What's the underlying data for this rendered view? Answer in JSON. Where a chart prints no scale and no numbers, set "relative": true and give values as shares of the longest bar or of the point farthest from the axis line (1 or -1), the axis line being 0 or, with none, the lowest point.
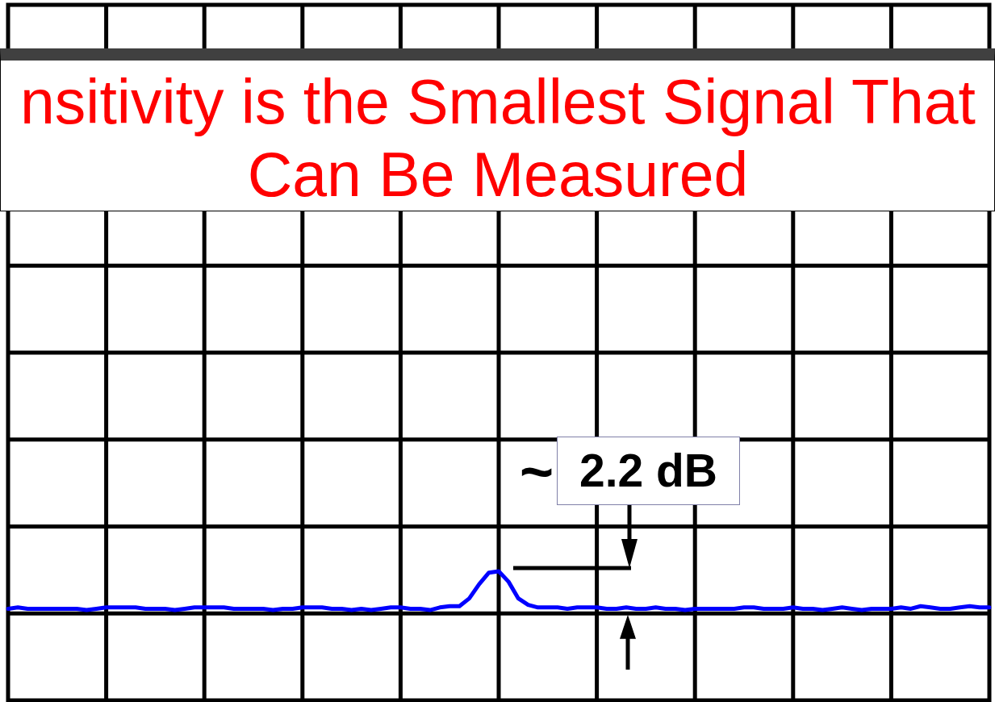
{
  "chart_data": {
    "type": "line",
    "title": "nsitivity is the Smallest Signal That Can Be Measured",
    "categories": [
      null,
      null,
      null,
      null,
      null,
      null,
      null,
      null,
      null,
      null,
      null,
      null,
      null,
      null,
      null,
      null,
      null,
      null,
      null,
      null,
      null,
      null,
      null,
      null,
      null,
      null,
      null,
      null,
      null,
      null,
      null,
      null,
      null,
      null,
      null,
      null,
      null,
      null,
      null,
      null,
      null,
      null,
      null,
      null,
      null,
      null,
      null,
      null,
      null,
      null,
      null,
      null,
      null,
      null,
      null,
      null,
      null,
      null,
      null,
      null,
      null,
      null,
      null,
      null,
      null,
      null,
      null,
      null,
      null,
      null,
      null,
      null,
      null,
      null,
      null,
      null,
      null,
      null,
      null,
      null,
      null,
      null,
      null,
      null,
      null,
      null,
      null,
      null,
      null,
      null,
      null,
      null,
      null,
      null,
      null,
      null,
      null,
      null,
      null,
      null,
      null
    ],
    "values": [
      0.71,
      0.72,
      0.71,
      0.71,
      0.71,
      0.71,
      0.71,
      0.71,
      0.7,
      0.71,
      0.72,
      0.72,
      0.72,
      0.72,
      0.71,
      0.71,
      0.71,
      0.7,
      0.71,
      0.72,
      0.72,
      0.72,
      0.72,
      0.71,
      0.71,
      0.71,
      0.71,
      0.7,
      0.71,
      0.71,
      0.72,
      0.72,
      0.72,
      0.71,
      0.71,
      0.7,
      0.71,
      0.7,
      0.71,
      0.72,
      0.72,
      0.71,
      0.71,
      0.7,
      0.72,
      0.73,
      0.73,
      0.79,
      0.9,
      0.99,
      1,
      0.92,
      0.79,
      0.74,
      0.72,
      0.72,
      0.72,
      0.71,
      0.72,
      0.72,
      0.72,
      0.71,
      0.71,
      0.72,
      0.71,
      0.71,
      0.72,
      0.71,
      0.71,
      0.7,
      0.71,
      0.71,
      0.71,
      0.71,
      0.71,
      0.72,
      0.72,
      0.71,
      0.71,
      0.71,
      0.72,
      0.71,
      0.71,
      0.7,
      0.71,
      0.72,
      0.71,
      0.7,
      0.71,
      0.71,
      0.71,
      0.72,
      0.71,
      0.73,
      0.72,
      0.71,
      0.71,
      0.72,
      0.73,
      0.72,
      0.72
    ],
    "color": "#0000ff",
    "relative": true,
    "grid": true,
    "marker": "none",
    "line_style": "solid",
    "annotations": [
      "~ 2.2 dB"
    ]
  }
}
